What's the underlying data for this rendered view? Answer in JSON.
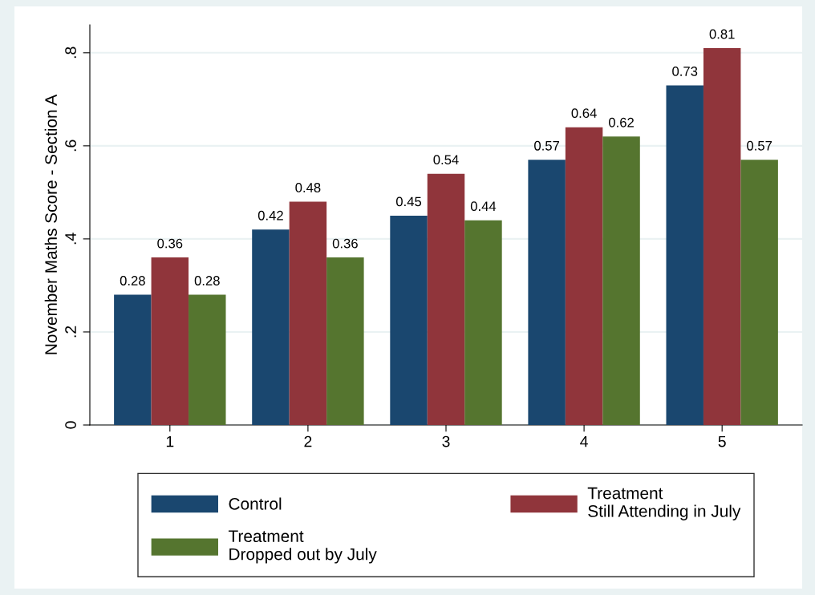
{
  "chart_data": {
    "type": "bar",
    "ylabel": "November Maths Score - Section A",
    "categories": [
      "1",
      "2",
      "3",
      "4",
      "5"
    ],
    "series": [
      {
        "name": "Control",
        "color": "#1a476f",
        "values": [
          0.28,
          0.42,
          0.45,
          0.57,
          0.73
        ]
      },
      {
        "name": "Treatment\nStill Attending in July",
        "color": "#90353b",
        "values": [
          0.36,
          0.48,
          0.54,
          0.64,
          0.81
        ]
      },
      {
        "name": "Treatment\nDropped out by July",
        "color": "#55752f",
        "values": [
          0.28,
          0.36,
          0.44,
          0.62,
          0.57
        ]
      }
    ],
    "ylim": [
      0,
      0.86
    ],
    "yticks": [
      0,
      {
        "value": 0.2,
        "label": ".2"
      },
      {
        "value": 0.4,
        "label": ".4"
      },
      {
        "value": 0.6,
        "label": ".6"
      },
      {
        "value": 0.8,
        "label": ".8"
      }
    ],
    "grid": "y",
    "legend": "bottom",
    "data_labels": true
  }
}
